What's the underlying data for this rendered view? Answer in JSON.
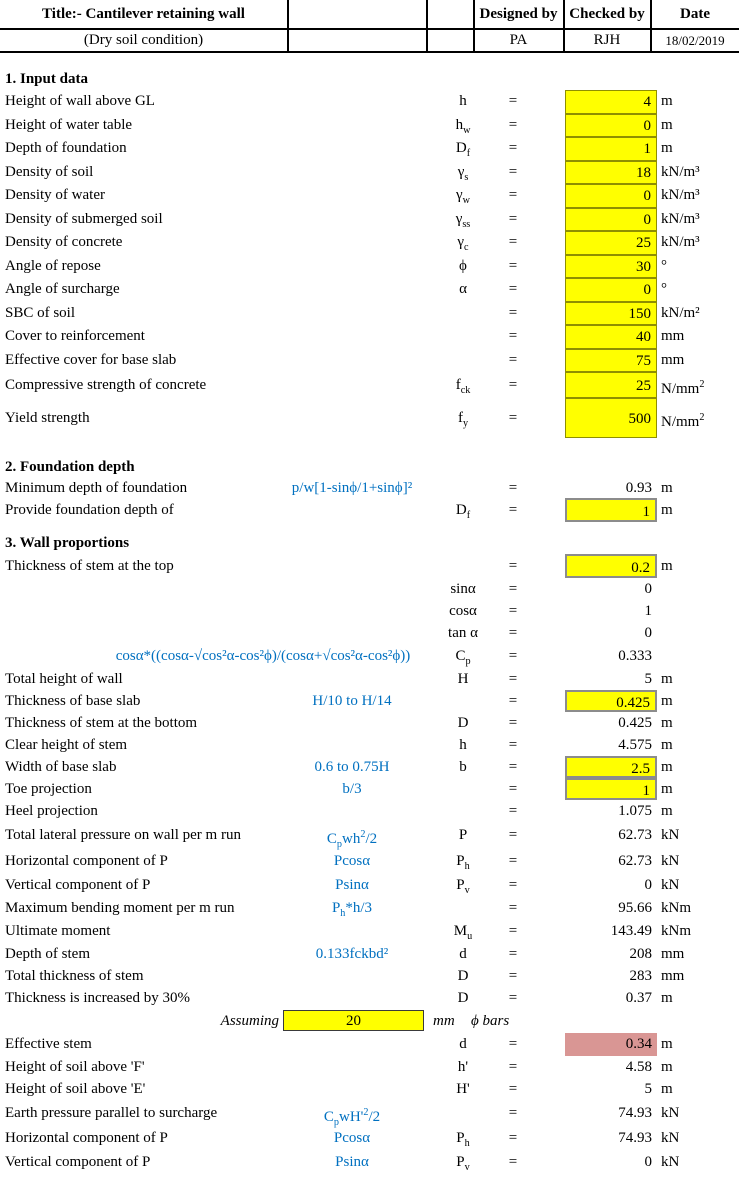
{
  "header": {
    "title": "Title:- Cantilever retaining wall",
    "subtitle": "(Dry soil condition)",
    "designed_by_label": "Designed by",
    "checked_by_label": "Checked by",
    "date_label": "Date",
    "designed_by": "PA",
    "checked_by": "RJH",
    "date": "18/02/2019"
  },
  "colors": {
    "input_fill": "#FFFF00",
    "highlight_fill": "#D99694",
    "formula_text": "#0070C0",
    "border": "#000000"
  },
  "sections": [
    {
      "heading": "1. Input data",
      "rows": [
        {
          "label": "Height of wall above GL",
          "symbol": "h",
          "eq": "=",
          "value": "4",
          "unit": "m",
          "cell": "yellow"
        },
        {
          "label": "Height of water table",
          "symbol": "h<sub>w</sub>",
          "eq": "=",
          "value": "0",
          "unit": "m",
          "cell": "yellow"
        },
        {
          "label": "Depth of foundation",
          "symbol": "D<sub>f</sub>",
          "eq": "=",
          "value": "1",
          "unit": "m",
          "cell": "yellow"
        },
        {
          "label": "Density of soil",
          "symbol": "γ<sub>s</sub>",
          "eq": "=",
          "value": "18",
          "unit": "kN/m³",
          "cell": "yellow"
        },
        {
          "label": "Density of water",
          "symbol": "γ<sub>w</sub>",
          "eq": "=",
          "value": "0",
          "unit": "kN/m³",
          "cell": "yellow"
        },
        {
          "label": "Density of submerged soil",
          "symbol": "γ<sub>ss</sub>",
          "eq": "=",
          "value": "0",
          "unit": "kN/m³",
          "cell": "yellow"
        },
        {
          "label": "Density of concrete",
          "symbol": "γ<sub>c</sub>",
          "eq": "=",
          "value": "25",
          "unit": "kN/m³",
          "cell": "yellow"
        },
        {
          "label": "Angle of repose",
          "symbol": "ϕ",
          "eq": "=",
          "value": "30",
          "unit": "°",
          "cell": "yellow"
        },
        {
          "label": "Angle of surcharge",
          "symbol": "α",
          "eq": "=",
          "value": "0",
          "unit": "°",
          "cell": "yellow"
        },
        {
          "label": "SBC of soil",
          "eq": "=",
          "value": "150",
          "unit": "kN/m²",
          "cell": "yellow"
        },
        {
          "label": "Cover to reinforcement",
          "eq": "=",
          "value": "40",
          "unit": "mm",
          "cell": "yellow"
        },
        {
          "label": "Effective cover for base slab",
          "eq": "=",
          "value": "75",
          "unit": "mm",
          "cell": "yellow"
        },
        {
          "label": "Compressive strength of concrete",
          "symbol": "f<sub>ck</sub>",
          "eq": "=",
          "value": "25",
          "unit": "N/mm<sup>2</sup>",
          "cell": "yellow"
        },
        {
          "label": "Yield strength",
          "symbol": "f<sub>y</sub>",
          "eq": "=",
          "value": "500",
          "unit": "N/mm<sup>2</sup>",
          "cell": "yellow"
        }
      ]
    },
    {
      "heading": "2. Foundation depth",
      "rows": [
        {
          "label": "Minimum depth of foundation",
          "formula": "p/w[1-sinϕ/1+sinϕ]²",
          "eq": "=",
          "value": "0.93",
          "unit": "m",
          "cell": "none"
        },
        {
          "label": "Provide foundation depth of",
          "symbol": "D<sub>f</sub>",
          "eq": "=",
          "value": "1",
          "unit": "m",
          "cell": "yellow3d"
        }
      ]
    },
    {
      "heading": "3. Wall proportions",
      "rows": [
        {
          "label": "Thickness of stem at the top",
          "eq": "=",
          "value": "0.2",
          "unit": "m",
          "cell": "yellow3d"
        },
        {
          "symbol": "sinα",
          "eq": "=",
          "value": "0",
          "cell": "none"
        },
        {
          "symbol": "cosα",
          "eq": "=",
          "value": "1",
          "cell": "none"
        },
        {
          "symbol": "tan α",
          "eq": "=",
          "value": "0",
          "cell": "none"
        },
        {
          "formula": "cosα*((cosα-√cos²α-cos²ϕ)/(cosα+√cos²α-cos²ϕ))",
          "wide": true,
          "symbol": "C<sub>p</sub>",
          "eq": "=",
          "value": "0.333",
          "cell": "none"
        },
        {
          "label": "Total height of wall",
          "symbol": "H",
          "eq": "=",
          "value": "5",
          "unit": "m",
          "cell": "none"
        },
        {
          "label": "Thickness of base slab",
          "formula": "H/10 to H/14",
          "eq": "=",
          "value": "0.425",
          "unit": "m",
          "cell": "yellow3d"
        },
        {
          "label": "Thickness of stem at the bottom",
          "symbol": "D",
          "eq": "=",
          "value": "0.425",
          "unit": "m",
          "cell": "none"
        },
        {
          "label": "Clear height of stem",
          "symbol": "h",
          "eq": "=",
          "value": "4.575",
          "unit": "m",
          "cell": "none"
        },
        {
          "label": "Width of base slab",
          "formula": "0.6 to 0.75H",
          "symbol": "b",
          "eq": "=",
          "value": "2.5",
          "unit": "m",
          "cell": "yellow3d"
        },
        {
          "label": "Toe projection",
          "formula": "b/3",
          "eq": "=",
          "value": "1",
          "unit": "m",
          "cell": "yellow3d"
        },
        {
          "label": "Heel projection",
          "eq": "=",
          "value": "1.075",
          "unit": "m",
          "cell": "none"
        },
        {
          "label": "Total lateral pressure on wall per m run",
          "formula": "C<sub>p</sub>wh<sup>2</sup>/2",
          "symbol": "P",
          "eq": "=",
          "value": "62.73",
          "unit": "kN",
          "cell": "none"
        },
        {
          "label": "Horizontal component of P",
          "formula": "Pcosα",
          "symbol": "P<sub>h</sub>",
          "eq": "=",
          "value": "62.73",
          "unit": "kN",
          "cell": "none"
        },
        {
          "label": "Vertical component of P",
          "formula": "Psinα",
          "symbol": "P<sub>v</sub>",
          "eq": "=",
          "value": "0",
          "unit": "kN",
          "cell": "none"
        },
        {
          "label": "Maximum bending moment per m run",
          "formula": "P<sub>h</sub>*h/3",
          "eq": "=",
          "value": "95.66",
          "unit": "kNm",
          "cell": "none"
        },
        {
          "label": "Ultimate moment",
          "symbol": "M<sub>u</sub>",
          "eq": "=",
          "value": "143.49",
          "unit": "kNm",
          "cell": "none"
        },
        {
          "label": "Depth of stem",
          "formula": "0.133fckbd²",
          "symbol": "d",
          "eq": "=",
          "value": "208",
          "unit": "mm",
          "cell": "none"
        },
        {
          "label": "Total thickness of stem",
          "symbol": "D",
          "eq": "=",
          "value": "283",
          "unit": "mm",
          "cell": "none"
        },
        {
          "label": "Thickness is increased by 30%",
          "symbol": "D",
          "eq": "=",
          "value": "0.37",
          "unit": "m",
          "cell": "none"
        },
        {
          "type": "assume",
          "label": "Assuming",
          "value": "20",
          "unit": "mm",
          "note": "ϕ bars"
        },
        {
          "label": "Effective stem",
          "symbol": "d",
          "eq": "=",
          "value": "0.34",
          "unit": "m",
          "cell": "pink"
        },
        {
          "label": "Height of soil above 'F'",
          "symbol": "h'",
          "eq": "=",
          "value": "4.58",
          "unit": "m",
          "cell": "none"
        },
        {
          "label": "Height of soil above 'E'",
          "symbol": "H'",
          "eq": "=",
          "value": "5",
          "unit": "m",
          "cell": "none"
        },
        {
          "label": "Earth pressure parallel to surcharge",
          "formula": "C<sub>p</sub>wH'<sup>2</sup>/2",
          "eq": "=",
          "value": "74.93",
          "unit": "kN",
          "cell": "none"
        },
        {
          "label": "Horizontal component of P",
          "formula": "Pcosα",
          "symbol": "P<sub>h</sub>",
          "eq": "=",
          "value": "74.93",
          "unit": "kN",
          "cell": "none"
        },
        {
          "label": "Vertical component of P",
          "formula": "Psinα",
          "symbol": "P<sub>v</sub>",
          "eq": "=",
          "value": "0",
          "unit": "kN",
          "cell": "none"
        }
      ]
    }
  ]
}
